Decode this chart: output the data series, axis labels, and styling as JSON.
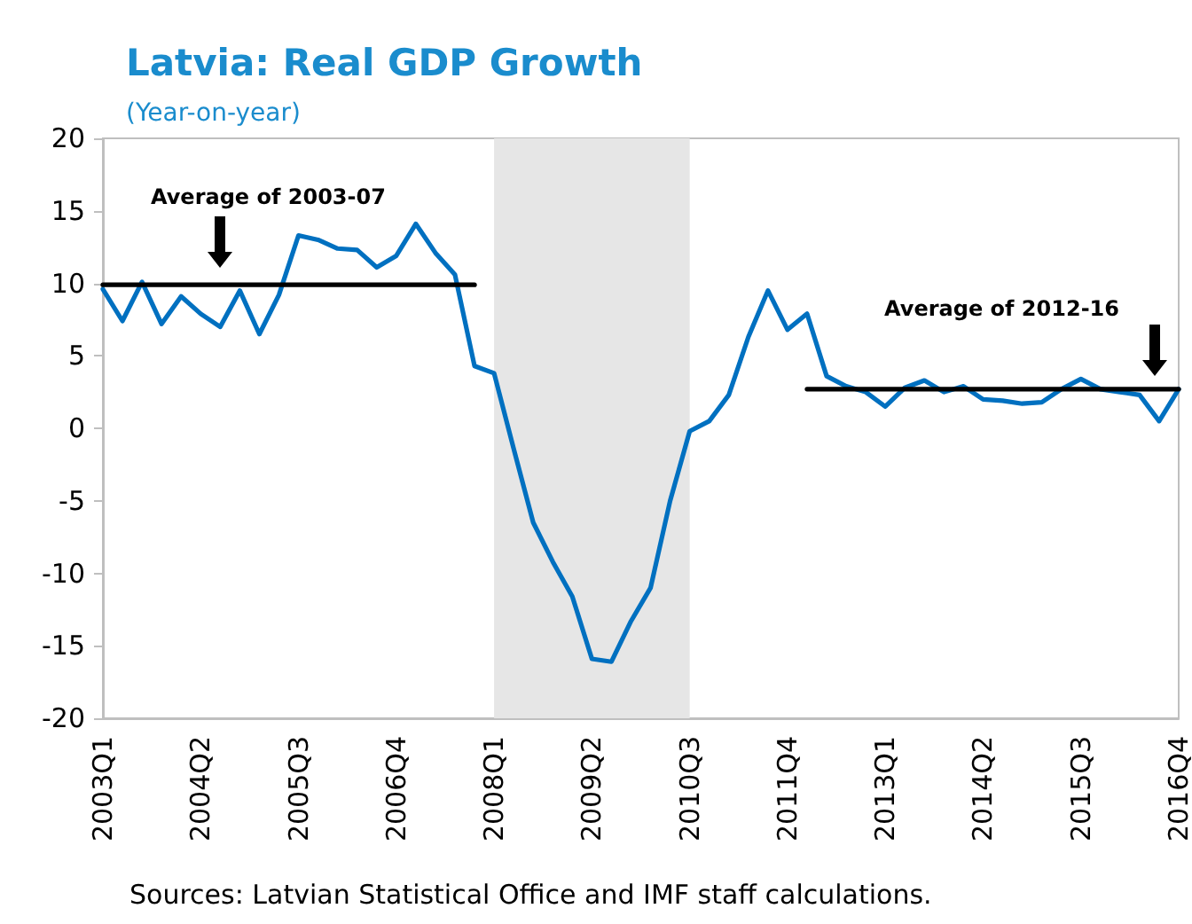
{
  "chart_data": {
    "type": "line",
    "title": "Latvia: Real GDP Growth",
    "subtitle": "(Year-on-year)",
    "categories": [
      "2003Q1",
      null,
      null,
      null,
      null,
      "2004Q2",
      null,
      null,
      null,
      null,
      "2005Q3",
      null,
      null,
      null,
      null,
      "2006Q4",
      null,
      null,
      null,
      null,
      "2008Q1",
      null,
      null,
      null,
      null,
      "2009Q2",
      null,
      null,
      null,
      null,
      "2010Q3",
      null,
      null,
      null,
      null,
      "2011Q4",
      null,
      null,
      null,
      null,
      "2013Q1",
      null,
      null,
      null,
      null,
      "2014Q2",
      null,
      null,
      null,
      null,
      "2015Q3",
      null,
      null,
      null,
      null,
      "2016Q4"
    ],
    "series": [
      {
        "color": "#0070c0",
        "values": [
          9.6,
          7.4,
          10.1,
          7.2,
          9.1,
          7.9,
          7.0,
          9.5,
          6.5,
          9.2,
          13.3,
          13.0,
          12.4,
          12.3,
          11.1,
          11.9,
          14.1,
          12.1,
          10.6,
          4.3,
          3.8,
          -1.4,
          -6.5,
          -9.2,
          -11.6,
          -15.9,
          -16.1,
          -13.3,
          -11.0,
          -5.0,
          -0.2,
          0.5,
          2.3,
          6.3,
          9.5,
          6.8,
          7.9,
          3.6,
          2.9,
          2.5,
          1.5,
          2.8,
          3.3,
          2.5,
          2.9,
          2.0,
          1.9,
          1.7,
          1.8,
          2.7,
          3.4,
          2.7,
          2.5,
          2.3,
          0.5,
          2.7
        ]
      },
      {
        "color": "#000000",
        "values": [
          9.9,
          9.9,
          9.9,
          9.9,
          9.9,
          9.9,
          9.9,
          9.9,
          9.9,
          9.9,
          9.9,
          9.9,
          9.9,
          9.9,
          9.9,
          9.9,
          9.9,
          9.9,
          9.9,
          9.9,
          null,
          null,
          null,
          null,
          null,
          null,
          null,
          null,
          null,
          null,
          null,
          null,
          null,
          null,
          null,
          null,
          null,
          null,
          null,
          null,
          null,
          null,
          null,
          null,
          null,
          null,
          null,
          null,
          null,
          null,
          null,
          null,
          null,
          null,
          null,
          null
        ]
      },
      {
        "color": "#000000",
        "values": [
          null,
          null,
          null,
          null,
          null,
          null,
          null,
          null,
          null,
          null,
          null,
          null,
          null,
          null,
          null,
          null,
          null,
          null,
          null,
          null,
          null,
          null,
          null,
          null,
          null,
          null,
          null,
          null,
          null,
          null,
          null,
          null,
          null,
          null,
          null,
          null,
          2.7,
          2.7,
          2.7,
          2.7,
          2.7,
          2.7,
          2.7,
          2.7,
          2.7,
          2.7,
          2.7,
          2.7,
          2.7,
          2.7,
          2.7,
          2.7,
          2.7,
          2.7,
          2.7,
          2.7
        ]
      }
    ],
    "ylim": [
      -20,
      20
    ],
    "yticks": [
      -20,
      -15,
      -10,
      -5,
      0,
      5,
      10,
      15,
      20
    ],
    "bands": [
      {
        "axis": "x",
        "from": "2008Q1",
        "to": "2010Q3",
        "color": "#e6e6e6"
      }
    ],
    "annotations": [
      "Average of 2003-07",
      "Average of 2012-16",
      "Sources: Latvian Statistical Office and IMF staff calculations."
    ],
    "grid": false,
    "marker": "none",
    "line_style": "solid"
  }
}
